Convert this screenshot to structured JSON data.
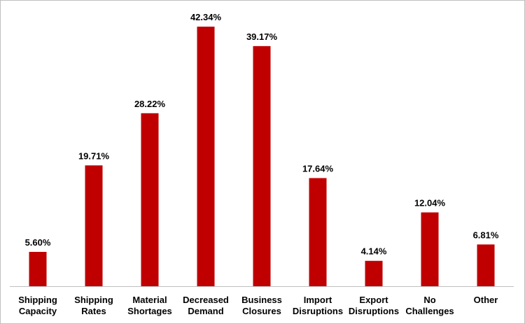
{
  "chart_data": {
    "type": "bar",
    "categories": [
      "Shipping Capacity",
      "Shipping Rates",
      "Material Shortages",
      "Decreased Demand",
      "Business Closures",
      "Import Disruptions",
      "Export Disruptions",
      "No Challenges",
      "Other"
    ],
    "values": [
      5.6,
      19.71,
      28.22,
      42.34,
      39.17,
      17.64,
      4.14,
      12.04,
      6.81
    ],
    "value_labels": [
      "5.60%",
      "19.71%",
      "28.22%",
      "42.34%",
      "39.17%",
      "17.64%",
      "4.14%",
      "12.04%",
      "6.81%"
    ],
    "color": "#c00000"
  }
}
